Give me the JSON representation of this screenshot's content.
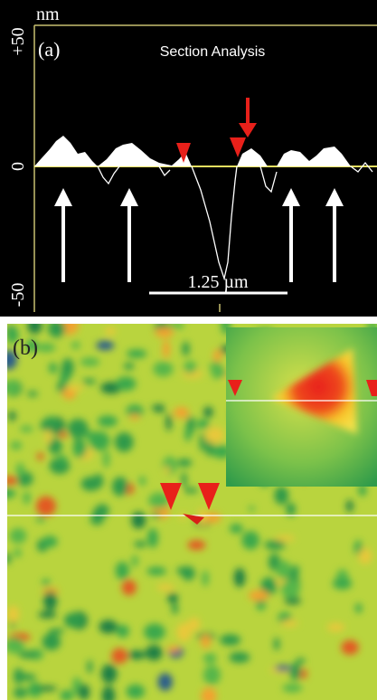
{
  "panel_a": {
    "label": "(a)",
    "title": "Section Analysis",
    "unit": "nm",
    "tick_top": "+50",
    "tick_zero": "0",
    "tick_bottom": "-50",
    "scale_bar": "1.25 µm"
  },
  "panel_b": {
    "label": "(b)"
  }
}
